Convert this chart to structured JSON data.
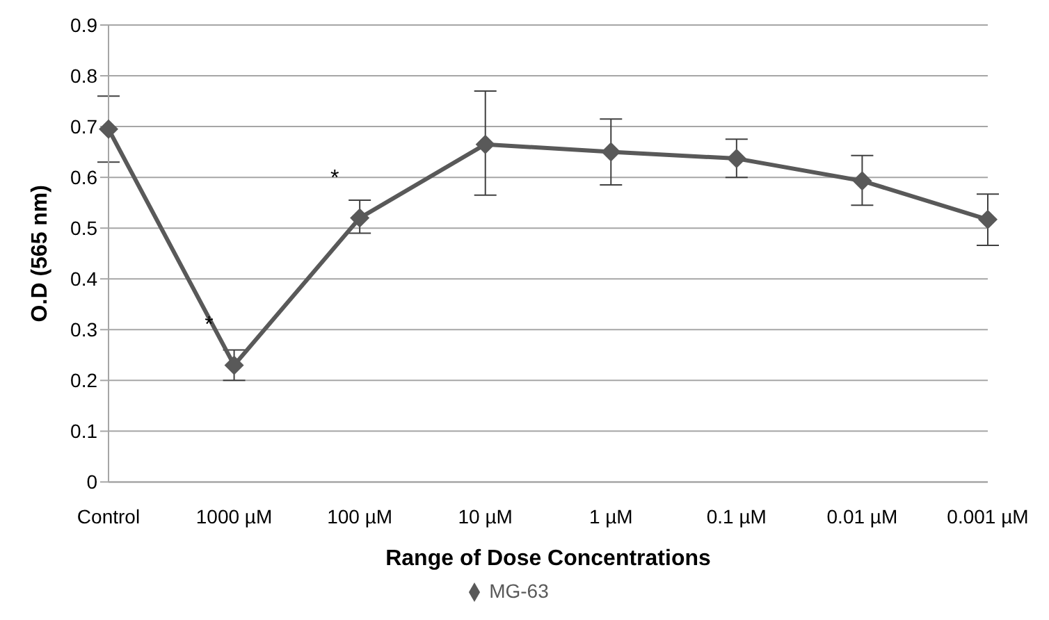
{
  "chart_data": {
    "type": "line",
    "xlabel": "Range of Dose Concentrations",
    "ylabel": "O.D (565 nm)",
    "categories": [
      "Control",
      "1000 µM",
      "100 µM",
      "10 µM",
      "1 µM",
      "0.1 µM",
      "0.01 µM",
      "0.001 µM"
    ],
    "series": [
      {
        "name": "MG-63",
        "color": "#595959",
        "values": [
          0.695,
          0.23,
          0.52,
          0.665,
          0.65,
          0.637,
          0.593,
          0.517
        ],
        "errors": [
          [
            0.63,
            0.76
          ],
          [
            0.2,
            0.26
          ],
          [
            0.49,
            0.555
          ],
          [
            0.565,
            0.77
          ],
          [
            0.585,
            0.715
          ],
          [
            0.6,
            0.675
          ],
          [
            0.545,
            0.643
          ],
          [
            0.466,
            0.567
          ]
        ]
      }
    ],
    "ylim": [
      0,
      0.9
    ],
    "yticks": [
      0,
      0.1,
      0.2,
      0.3,
      0.4,
      0.5,
      0.6,
      0.7,
      0.8,
      0.9
    ],
    "grid": "y",
    "legend": "bottom",
    "marker": "diamond",
    "line_style": "solid",
    "annotations": [
      {
        "text": "*",
        "x": "1000 µM",
        "y": 0.23
      },
      {
        "text": "*",
        "x": "100 µM",
        "y": 0.52
      }
    ]
  }
}
